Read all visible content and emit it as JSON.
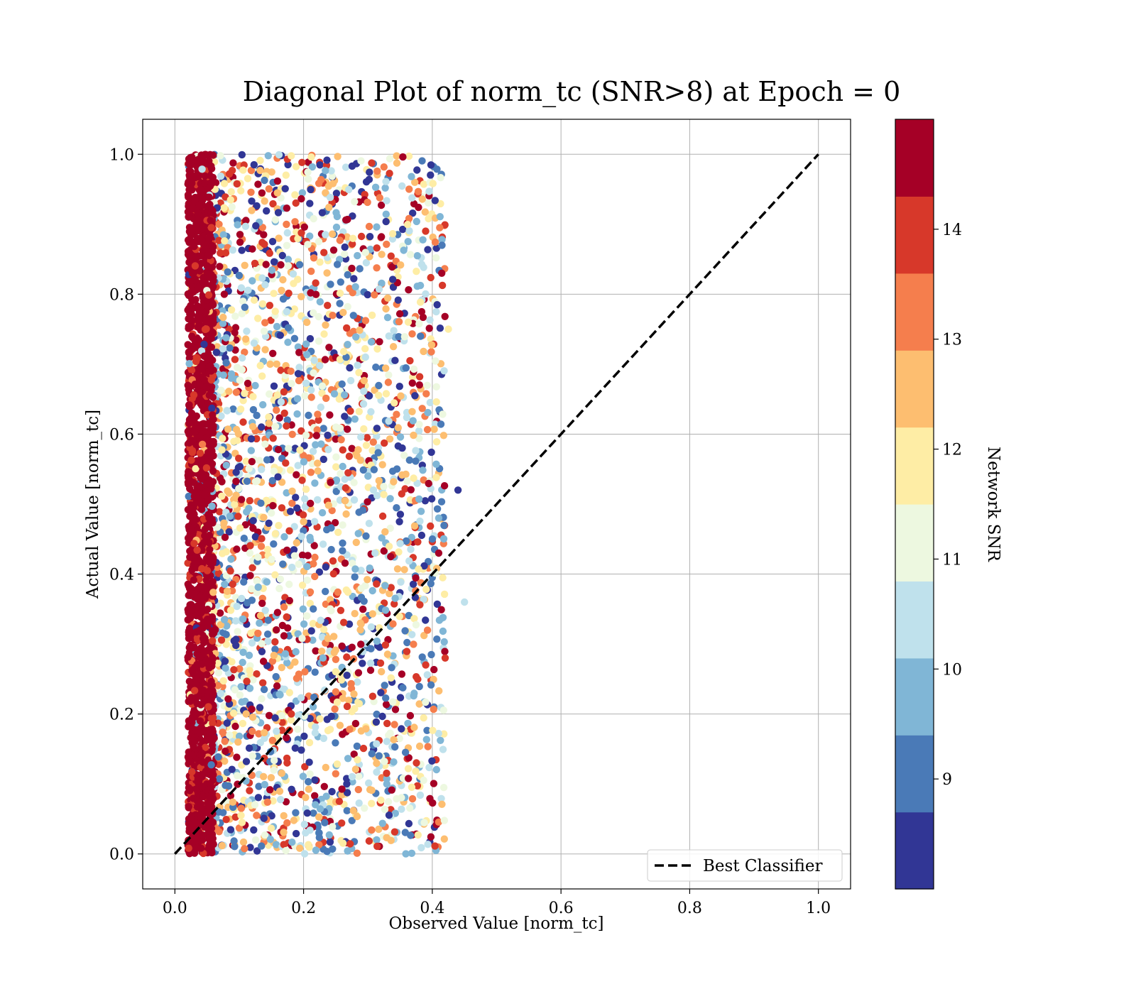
{
  "chart_data": {
    "type": "scatter",
    "title": "Diagonal Plot of norm_tc (SNR>8) at Epoch = 0",
    "xlabel": "Observed Value [norm_tc]",
    "ylabel": "Actual Value [norm_tc]",
    "xlim": [
      -0.05,
      1.05
    ],
    "ylim": [
      -0.05,
      1.05
    ],
    "x_ticks": [
      0.0,
      0.2,
      0.4,
      0.6,
      0.8,
      1.0
    ],
    "y_ticks": [
      0.0,
      0.2,
      0.4,
      0.6,
      0.8,
      1.0
    ],
    "x_tick_labels": [
      "0.0",
      "0.2",
      "0.4",
      "0.6",
      "0.8",
      "1.0"
    ],
    "y_tick_labels": [
      "0.0",
      "0.2",
      "0.4",
      "0.6",
      "0.8",
      "1.0"
    ],
    "grid": true,
    "scatter_description": {
      "actual_range": [
        0.0,
        1.0
      ],
      "observed_range_dense": [
        0.02,
        0.06
      ],
      "observed_range_spread": [
        0.06,
        0.42
      ],
      "outlier_points": [
        {
          "x": 0.45,
          "y": 0.36,
          "snr": 10.5
        },
        {
          "x": 0.44,
          "y": 0.52,
          "snr": 8.2
        },
        {
          "x": 0.42,
          "y": 0.28,
          "snr": 14.0
        },
        {
          "x": 0.425,
          "y": 0.75,
          "snr": 11.5
        },
        {
          "x": 0.415,
          "y": 0.87,
          "snr": 9.2
        },
        {
          "x": 0.41,
          "y": 0.48,
          "snr": 9.8
        },
        {
          "x": 0.41,
          "y": 0.43,
          "snr": 14.5
        }
      ]
    },
    "series": [
      {
        "name": "Best Classifier",
        "style": "dashed",
        "color": "#000000",
        "x": [
          0.0,
          1.0
        ],
        "y": [
          0.0,
          1.0
        ]
      }
    ],
    "legend": {
      "position": "lower-right",
      "entries": [
        "Best Classifier"
      ]
    },
    "colorbar": {
      "label": "Network SNR",
      "range": [
        8.0,
        15.0
      ],
      "ticks": [
        9,
        10,
        11,
        12,
        13,
        14
      ],
      "tick_labels": [
        "9",
        "10",
        "11",
        "12",
        "13",
        "14"
      ],
      "bins": [
        {
          "from": 8.0,
          "to": 8.7,
          "color": "#313695"
        },
        {
          "from": 8.7,
          "to": 9.4,
          "color": "#4a7ab7"
        },
        {
          "from": 9.4,
          "to": 10.1,
          "color": "#80b6d6"
        },
        {
          "from": 10.1,
          "to": 10.8,
          "color": "#bfe1ec"
        },
        {
          "from": 10.8,
          "to": 11.5,
          "color": "#edf8e0"
        },
        {
          "from": 11.5,
          "to": 12.2,
          "color": "#feeda5"
        },
        {
          "from": 12.2,
          "to": 12.9,
          "color": "#fdbe70"
        },
        {
          "from": 12.9,
          "to": 13.6,
          "color": "#f57e4d"
        },
        {
          "from": 13.6,
          "to": 14.3,
          "color": "#d7382a"
        },
        {
          "from": 14.3,
          "to": 15.0,
          "color": "#a50026"
        }
      ]
    }
  }
}
